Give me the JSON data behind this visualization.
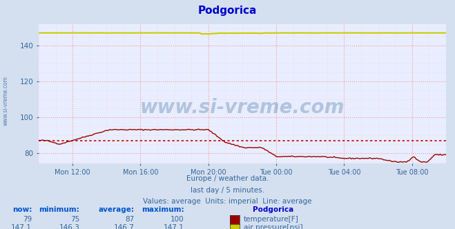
{
  "title": "Podgorica",
  "title_color": "#0000cc",
  "bg_color": "#d4dff0",
  "plot_bg_color": "#e8eeff",
  "grid_color_major": "#ff8888",
  "grid_color_minor": "#ffcccc",
  "tick_color": "#336699",
  "xlim_start": 0,
  "xlim_end": 288,
  "ylim": [
    74,
    152
  ],
  "yticks": [
    80,
    100,
    120,
    140
  ],
  "xtick_positions": [
    24,
    72,
    120,
    168,
    216,
    264
  ],
  "xtick_labels": [
    "Mon 12:00",
    "Mon 16:00",
    "Mon 20:00",
    "Tue 00:00",
    "Tue 04:00",
    "Tue 08:00"
  ],
  "subtitle_lines": [
    "Europe / weather data.",
    "last day / 5 minutes.",
    "Values: average  Units: imperial  Line: average"
  ],
  "subtitle_color": "#336699",
  "temp_color": "#990000",
  "pressure_color": "#cccc00",
  "avg_temp_color": "#cc0000",
  "avg_temp_value": 87,
  "watermark_text": "www.si-vreme.com",
  "watermark_color": "#336699",
  "legend_title": "Podgorica",
  "legend_title_color": "#0000cc",
  "legend_entries": [
    {
      "label": "temperature[F]",
      "color": "#cc0000"
    },
    {
      "label": "air pressure[psi]",
      "color": "#cccc00"
    }
  ],
  "stats_now": [
    79,
    147.1
  ],
  "stats_min": [
    75,
    146.3
  ],
  "stats_avg": [
    87,
    146.7
  ],
  "stats_max": [
    100,
    147.1
  ],
  "stats_labels": [
    "now:",
    "minimum:",
    "average:",
    "maximum:"
  ],
  "sidebar_text": "www.si-vreme.com",
  "sidebar_color": "#336699"
}
